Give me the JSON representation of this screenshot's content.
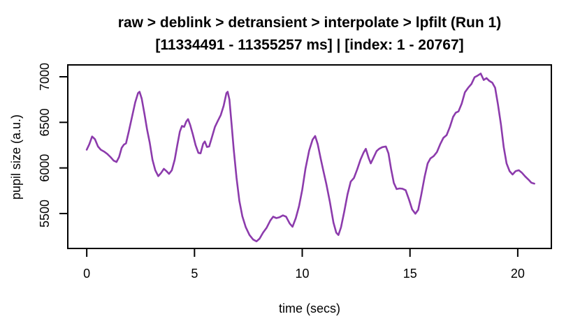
{
  "chart_data": {
    "type": "line",
    "title": "raw > deblink > detransient > interpolate > lpfilt (Run 1)",
    "subtitle": "[11334491 - 11355257 ms] | [index: 1 - 20767]",
    "xlabel": "time (secs)",
    "ylabel": "pupil size (a.u.)",
    "xlim": [
      -0.88,
      21.56
    ],
    "ylim": [
      5117,
      7130
    ],
    "x_ticks": [
      0,
      5,
      10,
      15,
      20
    ],
    "y_ticks": [
      5500,
      6000,
      6500,
      7000
    ],
    "grid": false,
    "legend": false,
    "line_color": "#8C3BAC",
    "background": "#ffffff",
    "axis_color": "#000000",
    "series": [
      {
        "name": "pupil_size",
        "points": [
          [
            0.0,
            6200
          ],
          [
            0.12,
            6260
          ],
          [
            0.25,
            6345
          ],
          [
            0.38,
            6315
          ],
          [
            0.52,
            6235
          ],
          [
            0.65,
            6200
          ],
          [
            0.8,
            6180
          ],
          [
            0.95,
            6155
          ],
          [
            1.1,
            6120
          ],
          [
            1.25,
            6080
          ],
          [
            1.38,
            6065
          ],
          [
            1.5,
            6120
          ],
          [
            1.62,
            6220
          ],
          [
            1.72,
            6255
          ],
          [
            1.82,
            6270
          ],
          [
            1.95,
            6400
          ],
          [
            2.1,
            6560
          ],
          [
            2.25,
            6720
          ],
          [
            2.38,
            6820
          ],
          [
            2.45,
            6835
          ],
          [
            2.55,
            6760
          ],
          [
            2.68,
            6590
          ],
          [
            2.8,
            6420
          ],
          [
            2.92,
            6280
          ],
          [
            3.05,
            6090
          ],
          [
            3.18,
            5975
          ],
          [
            3.32,
            5910
          ],
          [
            3.45,
            5945
          ],
          [
            3.58,
            5990
          ],
          [
            3.7,
            5965
          ],
          [
            3.82,
            5935
          ],
          [
            3.95,
            5975
          ],
          [
            4.08,
            6090
          ],
          [
            4.2,
            6250
          ],
          [
            4.32,
            6400
          ],
          [
            4.42,
            6460
          ],
          [
            4.52,
            6450
          ],
          [
            4.62,
            6510
          ],
          [
            4.7,
            6535
          ],
          [
            4.8,
            6470
          ],
          [
            4.92,
            6370
          ],
          [
            5.05,
            6250
          ],
          [
            5.18,
            6165
          ],
          [
            5.28,
            6160
          ],
          [
            5.4,
            6265
          ],
          [
            5.48,
            6290
          ],
          [
            5.58,
            6230
          ],
          [
            5.68,
            6235
          ],
          [
            5.8,
            6330
          ],
          [
            5.95,
            6450
          ],
          [
            6.08,
            6515
          ],
          [
            6.22,
            6580
          ],
          [
            6.35,
            6680
          ],
          [
            6.48,
            6820
          ],
          [
            6.54,
            6835
          ],
          [
            6.62,
            6750
          ],
          [
            6.72,
            6480
          ],
          [
            6.82,
            6200
          ],
          [
            6.95,
            5890
          ],
          [
            7.08,
            5640
          ],
          [
            7.22,
            5470
          ],
          [
            7.38,
            5350
          ],
          [
            7.55,
            5265
          ],
          [
            7.72,
            5215
          ],
          [
            7.88,
            5195
          ],
          [
            8.02,
            5225
          ],
          [
            8.18,
            5290
          ],
          [
            8.35,
            5345
          ],
          [
            8.52,
            5425
          ],
          [
            8.65,
            5465
          ],
          [
            8.8,
            5450
          ],
          [
            8.95,
            5460
          ],
          [
            9.1,
            5480
          ],
          [
            9.25,
            5465
          ],
          [
            9.42,
            5390
          ],
          [
            9.55,
            5355
          ],
          [
            9.7,
            5450
          ],
          [
            9.85,
            5580
          ],
          [
            10.0,
            5760
          ],
          [
            10.15,
            5990
          ],
          [
            10.32,
            6190
          ],
          [
            10.48,
            6310
          ],
          [
            10.6,
            6350
          ],
          [
            10.72,
            6260
          ],
          [
            10.85,
            6110
          ],
          [
            10.98,
            5970
          ],
          [
            11.12,
            5820
          ],
          [
            11.28,
            5630
          ],
          [
            11.45,
            5400
          ],
          [
            11.58,
            5290
          ],
          [
            11.68,
            5265
          ],
          [
            11.8,
            5350
          ],
          [
            11.95,
            5520
          ],
          [
            12.1,
            5710
          ],
          [
            12.25,
            5850
          ],
          [
            12.4,
            5890
          ],
          [
            12.55,
            5985
          ],
          [
            12.7,
            6090
          ],
          [
            12.85,
            6170
          ],
          [
            12.95,
            6210
          ],
          [
            13.08,
            6110
          ],
          [
            13.18,
            6050
          ],
          [
            13.3,
            6110
          ],
          [
            13.45,
            6185
          ],
          [
            13.57,
            6210
          ],
          [
            13.72,
            6228
          ],
          [
            13.88,
            6235
          ],
          [
            14.0,
            6160
          ],
          [
            14.12,
            5990
          ],
          [
            14.25,
            5835
          ],
          [
            14.38,
            5768
          ],
          [
            14.52,
            5775
          ],
          [
            14.65,
            5772
          ],
          [
            14.8,
            5755
          ],
          [
            14.95,
            5655
          ],
          [
            15.1,
            5545
          ],
          [
            15.25,
            5498
          ],
          [
            15.38,
            5540
          ],
          [
            15.52,
            5700
          ],
          [
            15.68,
            5905
          ],
          [
            15.82,
            6050
          ],
          [
            15.95,
            6105
          ],
          [
            16.1,
            6130
          ],
          [
            16.25,
            6175
          ],
          [
            16.4,
            6260
          ],
          [
            16.55,
            6330
          ],
          [
            16.7,
            6360
          ],
          [
            16.85,
            6450
          ],
          [
            17.0,
            6560
          ],
          [
            17.12,
            6605
          ],
          [
            17.25,
            6620
          ],
          [
            17.4,
            6705
          ],
          [
            17.55,
            6830
          ],
          [
            17.7,
            6880
          ],
          [
            17.85,
            6920
          ],
          [
            18.0,
            6995
          ],
          [
            18.12,
            7010
          ],
          [
            18.28,
            7035
          ],
          [
            18.42,
            6965
          ],
          [
            18.55,
            6985
          ],
          [
            18.68,
            6955
          ],
          [
            18.82,
            6935
          ],
          [
            18.95,
            6880
          ],
          [
            19.08,
            6700
          ],
          [
            19.22,
            6480
          ],
          [
            19.35,
            6230
          ],
          [
            19.48,
            6050
          ],
          [
            19.62,
            5965
          ],
          [
            19.76,
            5928
          ],
          [
            19.9,
            5965
          ],
          [
            20.05,
            5975
          ],
          [
            20.2,
            5945
          ],
          [
            20.35,
            5905
          ],
          [
            20.5,
            5872
          ],
          [
            20.63,
            5838
          ],
          [
            20.77,
            5828
          ]
        ]
      }
    ]
  }
}
